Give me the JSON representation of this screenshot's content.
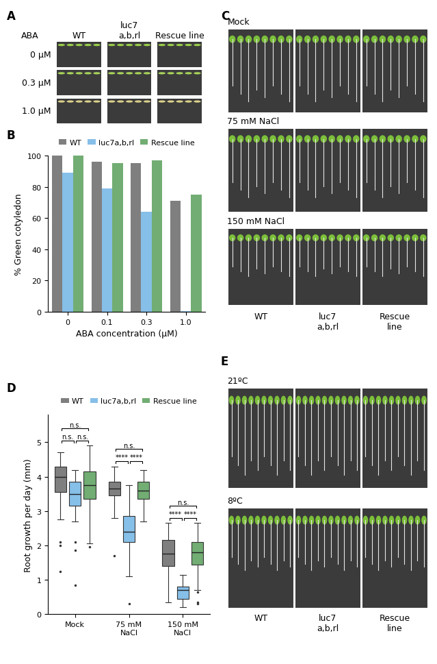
{
  "photo_panels": [
    {
      "label": "A",
      "header": "ABA",
      "columns": [
        "WT",
        "luc7\na,b,rl",
        "Rescue line"
      ],
      "rows": [
        "0 µM",
        "0.3 µM",
        "1.0 µM"
      ]
    },
    {
      "label": "C",
      "rows": [
        "Mock",
        "75 mM NaCl",
        "150 mM NaCl"
      ],
      "columns": [
        "WT",
        "luc7\na,b,rl",
        "Rescue\nline"
      ]
    },
    {
      "label": "E",
      "rows": [
        "21ºC",
        "8ºC"
      ],
      "columns": [
        "WT",
        "luc7\na,b,rl",
        "Rescue\nline"
      ]
    }
  ],
  "chart_data": [
    {
      "label": "B",
      "type": "bar",
      "x_label": "ABA concentration (µM)",
      "y_label": "% Green cotyledon",
      "categories": [
        "0",
        "0.1",
        "0.3",
        "1.0"
      ],
      "series": [
        {
          "name": "WT",
          "color": "#7f7f7f",
          "values": [
            100,
            96,
            95,
            71
          ]
        },
        {
          "name": "luc7a,b,rl",
          "color": "#86bfe8",
          "values": [
            89,
            79,
            64,
            0.5
          ]
        },
        {
          "name": "Rescue line",
          "color": "#72ad73",
          "values": [
            100,
            95,
            97,
            75
          ]
        }
      ],
      "ylim": [
        0,
        100
      ],
      "yticks": [
        0,
        20,
        40,
        60,
        80,
        100
      ],
      "legend": "upper center"
    },
    {
      "label": "D",
      "type": "box",
      "y_label": "Root growth per day (mm)",
      "categories": [
        "Mock",
        "75 mM\nNaCl",
        "150 mM\nNaCl"
      ],
      "series": [
        {
          "name": "WT",
          "color": "#7f7f7f",
          "stats": [
            {
              "whislo": 2.75,
              "q1": 3.55,
              "med": 4.0,
              "q3": 4.3,
              "whishi": 4.7,
              "fliers": [
                2.1,
                2.0,
                1.25
              ]
            },
            {
              "whislo": 2.8,
              "q1": 3.45,
              "med": 3.65,
              "q3": 3.85,
              "whishi": 4.3,
              "fliers": [
                1.7
              ]
            },
            {
              "whislo": 0.35,
              "q1": 1.4,
              "med": 1.75,
              "q3": 2.15,
              "whishi": 2.65,
              "fliers": []
            }
          ]
        },
        {
          "name": "luc7a,b,rl",
          "color": "#86bfe8",
          "stats": [
            {
              "whislo": 2.7,
              "q1": 3.15,
              "med": 3.5,
              "q3": 3.85,
              "whishi": 4.2,
              "fliers": [
                2.1,
                1.85,
                0.85
              ]
            },
            {
              "whislo": 1.1,
              "q1": 2.1,
              "med": 2.4,
              "q3": 2.85,
              "whishi": 3.75,
              "fliers": [
                0.3
              ]
            },
            {
              "whislo": 0.2,
              "q1": 0.45,
              "med": 0.7,
              "q3": 0.8,
              "whishi": 1.15,
              "fliers": []
            }
          ]
        },
        {
          "name": "Rescue line",
          "color": "#72ad73",
          "stats": [
            {
              "whislo": 2.05,
              "q1": 3.35,
              "med": 3.75,
              "q3": 4.15,
              "whishi": 4.9,
              "fliers": [
                1.95
              ]
            },
            {
              "whislo": 2.7,
              "q1": 3.35,
              "med": 3.6,
              "q3": 3.85,
              "whishi": 4.2,
              "fliers": []
            },
            {
              "whislo": 0.7,
              "q1": 1.45,
              "med": 1.8,
              "q3": 2.1,
              "whishi": 2.65,
              "fliers": [
                0.65,
                0.35,
                0.3
              ]
            }
          ]
        }
      ],
      "annotations": [
        {
          "group": 0,
          "pair": [
            0,
            1
          ],
          "text": "n.s."
        },
        {
          "group": 0,
          "pair": [
            1,
            2
          ],
          "text": "n.s."
        },
        {
          "group": 0,
          "pair": [
            0,
            2
          ],
          "text": "n.s."
        },
        {
          "group": 1,
          "pair": [
            0,
            1
          ],
          "text": "****"
        },
        {
          "group": 1,
          "pair": [
            1,
            2
          ],
          "text": "****"
        },
        {
          "group": 1,
          "pair": [
            0,
            2
          ],
          "text": "n.s."
        },
        {
          "group": 2,
          "pair": [
            0,
            1
          ],
          "text": "****"
        },
        {
          "group": 2,
          "pair": [
            1,
            2
          ],
          "text": "****"
        },
        {
          "group": 2,
          "pair": [
            0,
            2
          ],
          "text": "n.s."
        }
      ],
      "ylim": [
        0,
        5.8
      ],
      "yticks": [
        0,
        1,
        2,
        3,
        4,
        5
      ],
      "legend": "upper center"
    }
  ]
}
